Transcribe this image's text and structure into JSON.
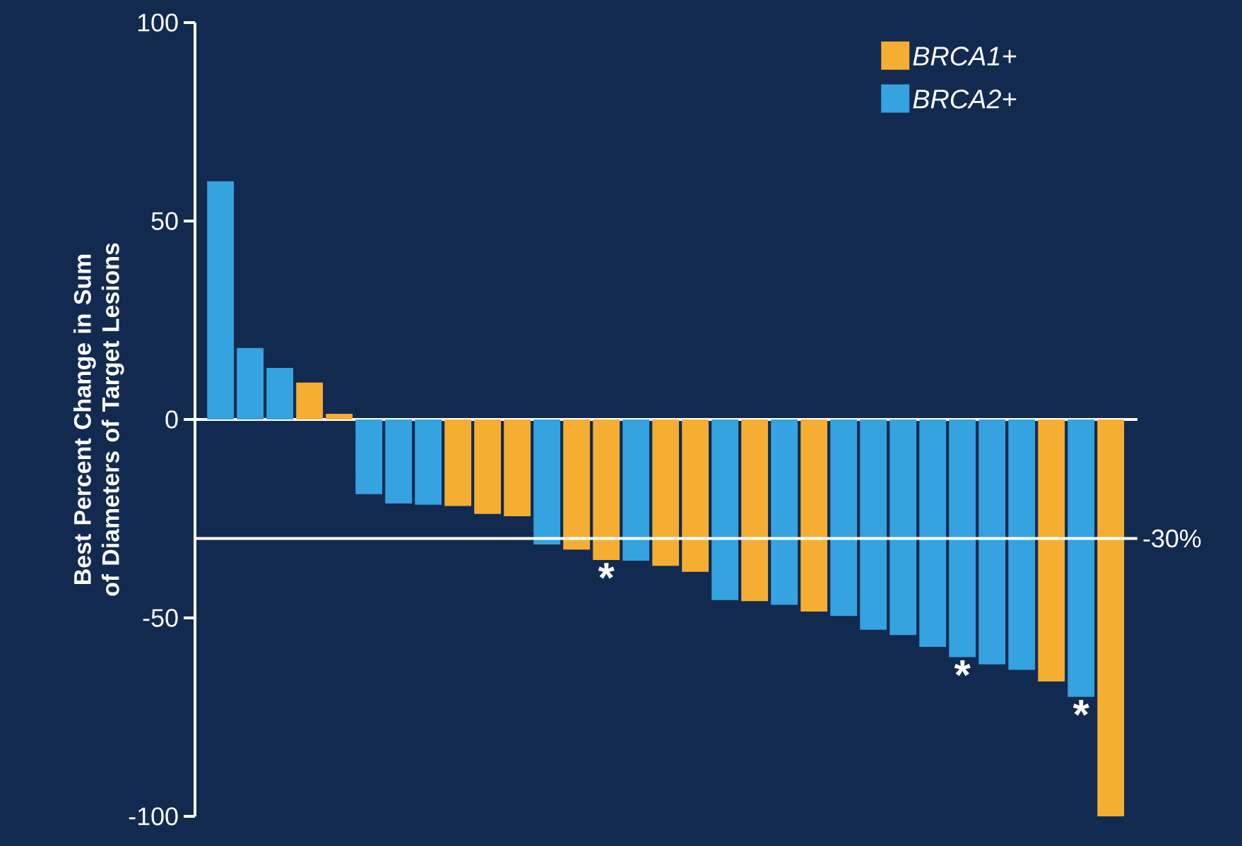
{
  "chart_data": {
    "type": "bar",
    "ylabel": "Best Percent Change in Sum of Diameters of Target Lesions",
    "categories": [
      null,
      null,
      null,
      null,
      null,
      null,
      null,
      null,
      null,
      null,
      null,
      null,
      null,
      null,
      null,
      null,
      null,
      null,
      null,
      null,
      null,
      null,
      null,
      null,
      null,
      null,
      null,
      null,
      null,
      null,
      null
    ],
    "series": [
      {
        "name": "BRCA1+",
        "color": "#f5ae32",
        "values": [
          null,
          null,
          null,
          9.3,
          1.4,
          null,
          null,
          null,
          -21.8,
          -23.8,
          -24.4,
          null,
          -32.8,
          -35.4,
          null,
          -36.9,
          -38.4,
          null,
          -45.8,
          null,
          -48.4,
          null,
          null,
          null,
          null,
          null,
          null,
          null,
          -66,
          null,
          -100
        ]
      },
      {
        "name": "BRCA2+",
        "color": "#34a3e0",
        "values": [
          60,
          18,
          13,
          null,
          null,
          -18.8,
          -21.2,
          -21.5,
          null,
          null,
          null,
          -31.5,
          null,
          null,
          -35.6,
          null,
          null,
          -45.5,
          null,
          -46.7,
          null,
          -49.5,
          -53,
          -54.3,
          -57.3,
          -59.9,
          -61.7,
          -63.1,
          null,
          -69.9,
          null
        ]
      }
    ],
    "ylim": [
      -100,
      100
    ],
    "yticks": [
      -100,
      -50,
      0,
      50,
      100
    ],
    "ref_lines": [
      {
        "axis": "y",
        "value": -30,
        "label": "-30%",
        "color": "#ffffff"
      }
    ],
    "annotations": [
      {
        "text": "*",
        "y": -35.4
      },
      {
        "text": "*",
        "y": -59.9
      },
      {
        "text": "*",
        "y": -69.9
      }
    ],
    "legend": "top right"
  }
}
